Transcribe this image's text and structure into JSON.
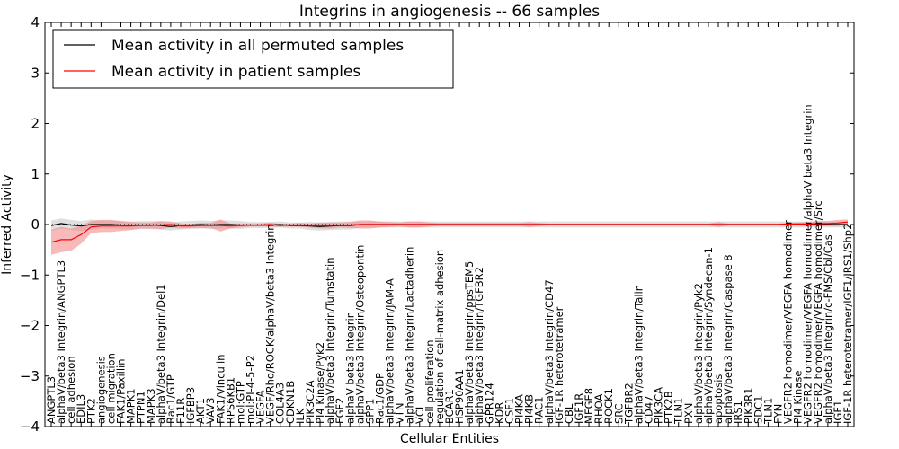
{
  "chart_data": {
    "type": "line",
    "title": "Integrins in angiogenesis -- 66 samples",
    "xlabel": "Cellular Entities",
    "ylabel": "Inferred Activity",
    "ylim": [
      -4,
      4
    ],
    "yticks": [
      "−4",
      "−3",
      "−2",
      "−1",
      "0",
      "1",
      "2",
      "3",
      "4"
    ],
    "grid": false,
    "legend_position": "top-left",
    "categories": [
      "ANGPTL3",
      "alphaV/beta3 Integrin/ANGPTL3",
      "cell adhesion",
      "EDIL3",
      "PTK2",
      "angiogenesis",
      "cell migration",
      "FAK1/Paxillin",
      "MAPK1",
      "PTPN1",
      "MAPK3",
      "alphaV/beta3 Integrin/Del1",
      "Rac1/GTP",
      "F11R",
      "IGFBP3",
      "AKT1",
      "VAV3",
      "FAK1/Vinculin",
      "RPS6KB1",
      "mol:GTP",
      "mol:PI-4-5-P2",
      "VEGFA",
      "VEGF/Rho/ROCK/alphaV/beta3 Integrin",
      "COL4A3",
      "CDKN1B",
      "ILK",
      "PIK3C2A",
      "PI4 Kinase/Pyk2",
      "alphaV/beta3 Integrin/Tumstatin",
      "FGF2",
      "alphaV beta3 Integrin",
      "alphaV/beta3 Integrin/Osteopontin",
      "SPP1",
      "Rac1/GDP",
      "alphaV/beta3 Integrin/JAM-A",
      "VTN",
      "alphaV/beta3 Integrin/Lactadherin",
      "VCL",
      "cell proliferation",
      "regulation of cell-matrix adhesion",
      "BCAR1",
      "HSP90AA1",
      "alphaV/beta3 Integrin/ppsTEM5",
      "alphaV/beta3 Integrin/TGFBR2",
      "GPR124",
      "KDR",
      "CSF1",
      "PI4KA",
      "PI4KB",
      "RAC1",
      "alphaV/beta3 Integrin/CD47",
      "IGF-1R heterotetramer",
      "CBL",
      "IGF1R",
      "MFGE8",
      "RHOA",
      "ROCK1",
      "SRC",
      "TGFBR2",
      "alphaV/beta3 Integrin/Talin",
      "CD47",
      "PIK3CA",
      "PTK2B",
      "TLN1",
      "PXN",
      "alphaV/beta3 Integrin/Pyk2",
      "alphaV/beta3 Integrin/Syndecan-1",
      "apoptosis",
      "alphaV/beta3 Integrin/Caspase 8",
      "IRS1",
      "PIK3R1",
      "SDC1",
      "TLN1",
      "FYN",
      "VEGFR2 homodimer/VEGFA homodimer",
      "PI4 Kinase",
      "VEGFR2 homodimer/VEGFA homodimer/alphaV beta3 Integrin",
      "VEGFR2 homodimer/VEGFA homodimer/Src",
      "alphaV/beta3 Integrin/c-FMS/Cbl/Cas",
      "IGF1",
      "IGF-1R heterotetramer/IGF1/IRS1/Shp2"
    ],
    "series": [
      {
        "name": "Mean activity in all permuted samples",
        "color": "#000000",
        "band_color": "#d3d3d3",
        "values": [
          -0.02,
          0.02,
          -0.01,
          -0.03,
          0.0,
          0.0,
          0.0,
          -0.01,
          -0.02,
          -0.01,
          -0.01,
          -0.02,
          -0.04,
          -0.02,
          -0.01,
          0.0,
          -0.01,
          0.0,
          0.0,
          -0.01,
          -0.01,
          -0.01,
          -0.01,
          0.0,
          -0.02,
          -0.02,
          -0.03,
          -0.04,
          -0.03,
          -0.02,
          -0.02,
          0.0,
          0.0,
          0.0,
          0.0,
          0.0,
          0.0,
          0.0,
          0.0,
          0.0,
          0.0,
          0.0,
          0.0,
          0.0,
          0.0,
          0.0,
          0.0,
          0.0,
          0.0,
          0.0,
          0.0,
          0.0,
          0.0,
          0.0,
          0.0,
          0.0,
          0.0,
          0.0,
          0.0,
          0.0,
          0.0,
          0.0,
          0.0,
          0.0,
          0.0,
          0.0,
          0.0,
          0.0,
          0.0,
          0.0,
          0.0,
          0.0,
          0.0,
          0.0,
          0.0,
          0.0,
          0.0,
          0.0,
          0.0,
          0.0,
          0.0
        ],
        "band_half_width": [
          0.1,
          0.1,
          0.1,
          0.1,
          0.1,
          0.08,
          0.08,
          0.08,
          0.08,
          0.08,
          0.08,
          0.08,
          0.08,
          0.08,
          0.08,
          0.08,
          0.08,
          0.08,
          0.08,
          0.08,
          0.06,
          0.06,
          0.06,
          0.06,
          0.06,
          0.06,
          0.08,
          0.08,
          0.08,
          0.08,
          0.08,
          0.06,
          0.06,
          0.06,
          0.06,
          0.06,
          0.06,
          0.06,
          0.06,
          0.06,
          0.06,
          0.06,
          0.06,
          0.06,
          0.06,
          0.06,
          0.06,
          0.06,
          0.06,
          0.06,
          0.06,
          0.06,
          0.06,
          0.06,
          0.06,
          0.06,
          0.06,
          0.06,
          0.06,
          0.06,
          0.06,
          0.06,
          0.06,
          0.06,
          0.06,
          0.06,
          0.06,
          0.06,
          0.06,
          0.06,
          0.06,
          0.06,
          0.06,
          0.06,
          0.06,
          0.06,
          0.06,
          0.06,
          0.06,
          0.06,
          0.06
        ]
      },
      {
        "name": "Mean activity in patient samples",
        "color": "#ff0000",
        "band_color": "#f08080",
        "values": [
          -0.35,
          -0.3,
          -0.3,
          -0.2,
          -0.05,
          -0.03,
          -0.03,
          -0.03,
          -0.03,
          -0.02,
          -0.02,
          -0.01,
          0.0,
          -0.03,
          -0.03,
          -0.02,
          -0.02,
          -0.02,
          -0.03,
          -0.02,
          -0.01,
          -0.01,
          0.0,
          -0.02,
          -0.01,
          -0.01,
          -0.02,
          -0.02,
          -0.02,
          -0.01,
          -0.01,
          0.0,
          0.0,
          0.0,
          0.0,
          0.0,
          0.0,
          0.0,
          0.0,
          0.0,
          0.0,
          0.0,
          0.0,
          0.0,
          0.0,
          0.0,
          0.0,
          0.0,
          0.0,
          0.0,
          0.0,
          0.0,
          0.0,
          0.0,
          0.0,
          0.0,
          0.0,
          0.0,
          0.0,
          0.0,
          0.0,
          0.0,
          0.0,
          0.0,
          0.0,
          0.0,
          0.0,
          0.0,
          0.0,
          0.0,
          0.0,
          0.0,
          0.0,
          0.0,
          0.01,
          0.01,
          0.01,
          0.02,
          0.02,
          0.03,
          0.05
        ],
        "band_half_width": [
          0.25,
          0.25,
          0.22,
          0.18,
          0.12,
          0.12,
          0.12,
          0.1,
          0.08,
          0.06,
          0.06,
          0.08,
          0.06,
          0.05,
          0.04,
          0.05,
          0.05,
          0.12,
          0.05,
          0.04,
          0.03,
          0.03,
          0.04,
          0.03,
          0.03,
          0.04,
          0.04,
          0.06,
          0.06,
          0.05,
          0.06,
          0.08,
          0.08,
          0.06,
          0.05,
          0.04,
          0.06,
          0.06,
          0.04,
          0.03,
          0.03,
          0.03,
          0.03,
          0.03,
          0.03,
          0.03,
          0.03,
          0.03,
          0.05,
          0.03,
          0.02,
          0.02,
          0.02,
          0.02,
          0.02,
          0.02,
          0.02,
          0.02,
          0.02,
          0.02,
          0.02,
          0.02,
          0.02,
          0.02,
          0.02,
          0.02,
          0.02,
          0.05,
          0.02,
          0.02,
          0.02,
          0.02,
          0.02,
          0.02,
          0.02,
          0.03,
          0.04,
          0.05,
          0.05,
          0.06,
          0.05
        ]
      }
    ]
  }
}
